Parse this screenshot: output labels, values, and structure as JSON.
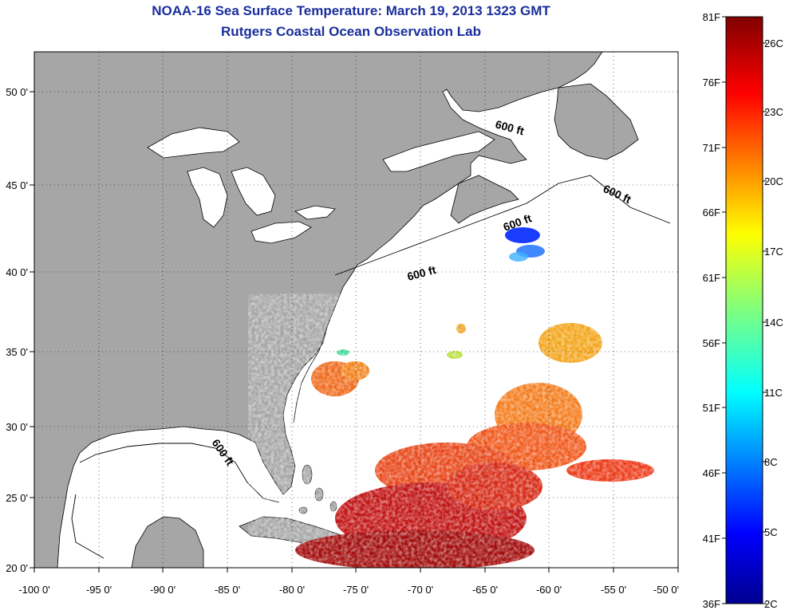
{
  "title": "NOAA-16 Sea Surface Temperature:  March 19, 2013 1323 GMT",
  "subtitle": "Rutgers Coastal Ocean Observation Lab",
  "map": {
    "lon_range": [
      -100,
      -50
    ],
    "lat_range": [
      20,
      52.5
    ],
    "lon_ticks": [
      "-100 0'",
      "-95 0'",
      "-90 0'",
      "-85 0'",
      "-80 0'",
      "-75 0'",
      "-70 0'",
      "-65 0'",
      "-60 0'",
      "-55 0'",
      "-50 0'"
    ],
    "lat_ticks": [
      "50 0'",
      "45 0'",
      "40 0'",
      "35 0'",
      "30 0'",
      "25 0'",
      "20 0'"
    ],
    "contour_label": "600 ft",
    "land_color": "#a6a6a6",
    "ocean_color": "#ffffff",
    "grid": "dotted"
  },
  "colorbar": {
    "fahrenheit_labels": [
      "81F",
      "76F",
      "71F",
      "66F",
      "61F",
      "56F",
      "51F",
      "46F",
      "41F",
      "36F"
    ],
    "celsius_labels": [
      "26C",
      "23C",
      "20C",
      "17C",
      "14C",
      "11C",
      "8C",
      "5C",
      "2C"
    ],
    "colormap": "jet"
  }
}
